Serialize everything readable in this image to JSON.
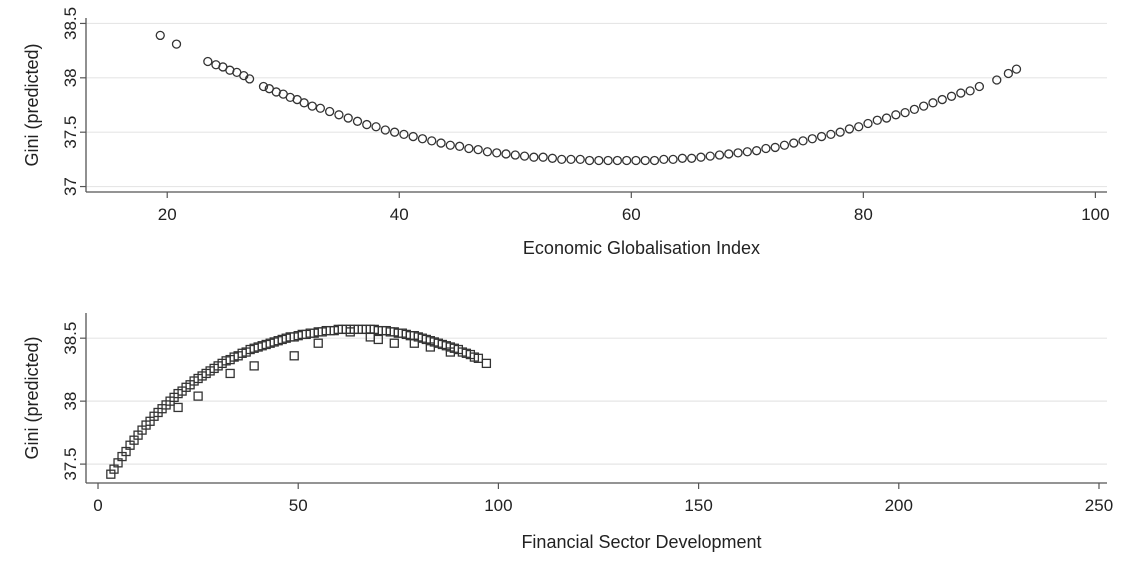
{
  "colors": {
    "grid": "#e6e6e6",
    "axis": "#555555",
    "marker": "#333333",
    "background": "#ffffff"
  },
  "chart_data": [
    {
      "type": "scatter",
      "marker": "circle",
      "xlabel": "Economic Globalisation Index",
      "ylabel": "Gini (predicted)",
      "xlim": [
        13,
        101
      ],
      "ylim": [
        36.95,
        38.55
      ],
      "xticks": [
        20,
        40,
        60,
        80,
        100
      ],
      "xtick_labels": [
        "20",
        "40",
        "60",
        "80",
        "100"
      ],
      "yticks": [
        37,
        37.5,
        38,
        38.5
      ],
      "ytick_labels": [
        "37",
        "37.5",
        "38",
        "38.5"
      ],
      "grid": "horizontal",
      "points": [
        [
          19.4,
          38.39
        ],
        [
          20.8,
          38.31
        ],
        [
          23.5,
          38.15
        ],
        [
          24.2,
          38.12
        ],
        [
          24.8,
          38.1
        ],
        [
          25.4,
          38.07
        ],
        [
          26.0,
          38.05
        ],
        [
          26.6,
          38.02
        ],
        [
          27.1,
          37.99
        ],
        [
          28.3,
          37.92
        ],
        [
          28.8,
          37.9
        ],
        [
          29.4,
          37.87
        ],
        [
          30.0,
          37.85
        ],
        [
          30.6,
          37.82
        ],
        [
          31.2,
          37.8
        ],
        [
          31.8,
          37.77
        ],
        [
          32.5,
          37.74
        ],
        [
          33.2,
          37.72
        ],
        [
          34.0,
          37.69
        ],
        [
          34.8,
          37.66
        ],
        [
          35.6,
          37.63
        ],
        [
          36.4,
          37.6
        ],
        [
          37.2,
          37.57
        ],
        [
          38.0,
          37.55
        ],
        [
          38.8,
          37.52
        ],
        [
          39.6,
          37.5
        ],
        [
          40.4,
          37.48
        ],
        [
          41.2,
          37.46
        ],
        [
          42.0,
          37.44
        ],
        [
          42.8,
          37.42
        ],
        [
          43.6,
          37.4
        ],
        [
          44.4,
          37.38
        ],
        [
          45.2,
          37.37
        ],
        [
          46.0,
          37.35
        ],
        [
          46.8,
          37.34
        ],
        [
          47.6,
          37.32
        ],
        [
          48.4,
          37.31
        ],
        [
          49.2,
          37.3
        ],
        [
          50.0,
          37.29
        ],
        [
          50.8,
          37.28
        ],
        [
          51.6,
          37.27
        ],
        [
          52.4,
          37.27
        ],
        [
          53.2,
          37.26
        ],
        [
          54.0,
          37.25
        ],
        [
          54.8,
          37.25
        ],
        [
          55.6,
          37.25
        ],
        [
          56.4,
          37.24
        ],
        [
          57.2,
          37.24
        ],
        [
          58.0,
          37.24
        ],
        [
          58.8,
          37.24
        ],
        [
          59.6,
          37.24
        ],
        [
          60.4,
          37.24
        ],
        [
          61.2,
          37.24
        ],
        [
          62.0,
          37.24
        ],
        [
          62.8,
          37.25
        ],
        [
          63.6,
          37.25
        ],
        [
          64.4,
          37.26
        ],
        [
          65.2,
          37.26
        ],
        [
          66.0,
          37.27
        ],
        [
          66.8,
          37.28
        ],
        [
          67.6,
          37.29
        ],
        [
          68.4,
          37.3
        ],
        [
          69.2,
          37.31
        ],
        [
          70.0,
          37.32
        ],
        [
          70.8,
          37.33
        ],
        [
          71.6,
          37.35
        ],
        [
          72.4,
          37.36
        ],
        [
          73.2,
          37.38
        ],
        [
          74.0,
          37.4
        ],
        [
          74.8,
          37.42
        ],
        [
          75.6,
          37.44
        ],
        [
          76.4,
          37.46
        ],
        [
          77.2,
          37.48
        ],
        [
          78.0,
          37.5
        ],
        [
          78.8,
          37.53
        ],
        [
          79.6,
          37.55
        ],
        [
          80.4,
          37.58
        ],
        [
          81.2,
          37.61
        ],
        [
          82.0,
          37.63
        ],
        [
          82.8,
          37.66
        ],
        [
          83.6,
          37.68
        ],
        [
          84.4,
          37.71
        ],
        [
          85.2,
          37.74
        ],
        [
          86.0,
          37.77
        ],
        [
          86.8,
          37.8
        ],
        [
          87.6,
          37.83
        ],
        [
          88.4,
          37.86
        ],
        [
          89.2,
          37.88
        ],
        [
          90.0,
          37.92
        ],
        [
          91.5,
          37.98
        ],
        [
          92.5,
          38.04
        ],
        [
          93.2,
          38.08
        ]
      ]
    },
    {
      "type": "scatter",
      "marker": "square",
      "xlabel": "Financial Sector Development",
      "ylabel": "Gini (predicted)",
      "xlim": [
        -3,
        252
      ],
      "ylim": [
        37.35,
        38.7
      ],
      "xticks": [
        0,
        50,
        100,
        150,
        200,
        250
      ],
      "xtick_labels": [
        "0",
        "50",
        "100",
        "150",
        "200",
        "250"
      ],
      "yticks": [
        37.5,
        38,
        38.5
      ],
      "ytick_labels": [
        "37.5",
        "38",
        "38.5"
      ],
      "grid": "horizontal",
      "points": [
        [
          3.2,
          37.42
        ],
        [
          4.0,
          37.46
        ],
        [
          5.0,
          37.51
        ],
        [
          6.0,
          37.56
        ],
        [
          7.0,
          37.6
        ],
        [
          8.0,
          37.65
        ],
        [
          9.0,
          37.69
        ],
        [
          10.0,
          37.73
        ],
        [
          11.0,
          37.77
        ],
        [
          12.0,
          37.81
        ],
        [
          13.0,
          37.84
        ],
        [
          14.0,
          37.88
        ],
        [
          15.0,
          37.91
        ],
        [
          16.0,
          37.94
        ],
        [
          17.0,
          37.97
        ],
        [
          18.0,
          38.0
        ],
        [
          19.0,
          38.03
        ],
        [
          20.0,
          38.06
        ],
        [
          21.0,
          38.08
        ],
        [
          22.0,
          38.11
        ],
        [
          23.0,
          38.13
        ],
        [
          24.0,
          38.16
        ],
        [
          25.0,
          38.18
        ],
        [
          26.0,
          38.2
        ],
        [
          27.0,
          38.22
        ],
        [
          28.0,
          38.24
        ],
        [
          29.0,
          38.26
        ],
        [
          30.0,
          38.28
        ],
        [
          31.0,
          38.3
        ],
        [
          32.0,
          38.32
        ],
        [
          33.0,
          38.33
        ],
        [
          34.0,
          38.35
        ],
        [
          35.0,
          38.36
        ],
        [
          36.0,
          38.38
        ],
        [
          37.0,
          38.39
        ],
        [
          38.0,
          38.41
        ],
        [
          39.0,
          38.42
        ],
        [
          40.0,
          38.43
        ],
        [
          41.0,
          38.44
        ],
        [
          42.0,
          38.45
        ],
        [
          43.0,
          38.46
        ],
        [
          44.0,
          38.47
        ],
        [
          45.0,
          38.48
        ],
        [
          46.0,
          38.49
        ],
        [
          47.0,
          38.5
        ],
        [
          48.0,
          38.51
        ],
        [
          49.0,
          38.51
        ],
        [
          50.0,
          38.52
        ],
        [
          51.0,
          38.53
        ],
        [
          52.0,
          38.53
        ],
        [
          53.0,
          38.54
        ],
        [
          54.0,
          38.54
        ],
        [
          55.0,
          38.55
        ],
        [
          56.0,
          38.55
        ],
        [
          57.0,
          38.56
        ],
        [
          58.0,
          38.56
        ],
        [
          59.0,
          38.56
        ],
        [
          60.0,
          38.57
        ],
        [
          61.0,
          38.57
        ],
        [
          62.0,
          38.57
        ],
        [
          63.0,
          38.57
        ],
        [
          64.0,
          38.57
        ],
        [
          65.0,
          38.57
        ],
        [
          66.0,
          38.57
        ],
        [
          67.0,
          38.57
        ],
        [
          68.0,
          38.57
        ],
        [
          69.0,
          38.57
        ],
        [
          70.0,
          38.56
        ],
        [
          71.0,
          38.56
        ],
        [
          72.0,
          38.56
        ],
        [
          73.0,
          38.55
        ],
        [
          74.0,
          38.55
        ],
        [
          75.0,
          38.54
        ],
        [
          76.0,
          38.54
        ],
        [
          77.0,
          38.53
        ],
        [
          78.0,
          38.52
        ],
        [
          79.0,
          38.52
        ],
        [
          80.0,
          38.51
        ],
        [
          81.0,
          38.5
        ],
        [
          82.0,
          38.49
        ],
        [
          83.0,
          38.48
        ],
        [
          84.0,
          38.47
        ],
        [
          85.0,
          38.46
        ],
        [
          86.0,
          38.45
        ],
        [
          87.0,
          38.44
        ],
        [
          88.0,
          38.43
        ],
        [
          89.0,
          38.42
        ],
        [
          90.0,
          38.41
        ],
        [
          91.0,
          38.39
        ],
        [
          92.0,
          38.38
        ],
        [
          93.0,
          38.37
        ],
        [
          94.0,
          38.35
        ],
        [
          95.0,
          38.34
        ],
        [
          97.0,
          38.3
        ],
        [
          20.0,
          37.95
        ],
        [
          25.0,
          38.04
        ],
        [
          33.0,
          38.22
        ],
        [
          39.0,
          38.28
        ],
        [
          49.0,
          38.36
        ],
        [
          55.0,
          38.46
        ],
        [
          63.0,
          38.55
        ],
        [
          68.0,
          38.51
        ],
        [
          70.0,
          38.49
        ],
        [
          74.0,
          38.46
        ],
        [
          79.0,
          38.46
        ],
        [
          83.0,
          38.43
        ],
        [
          88.0,
          38.39
        ]
      ]
    }
  ]
}
